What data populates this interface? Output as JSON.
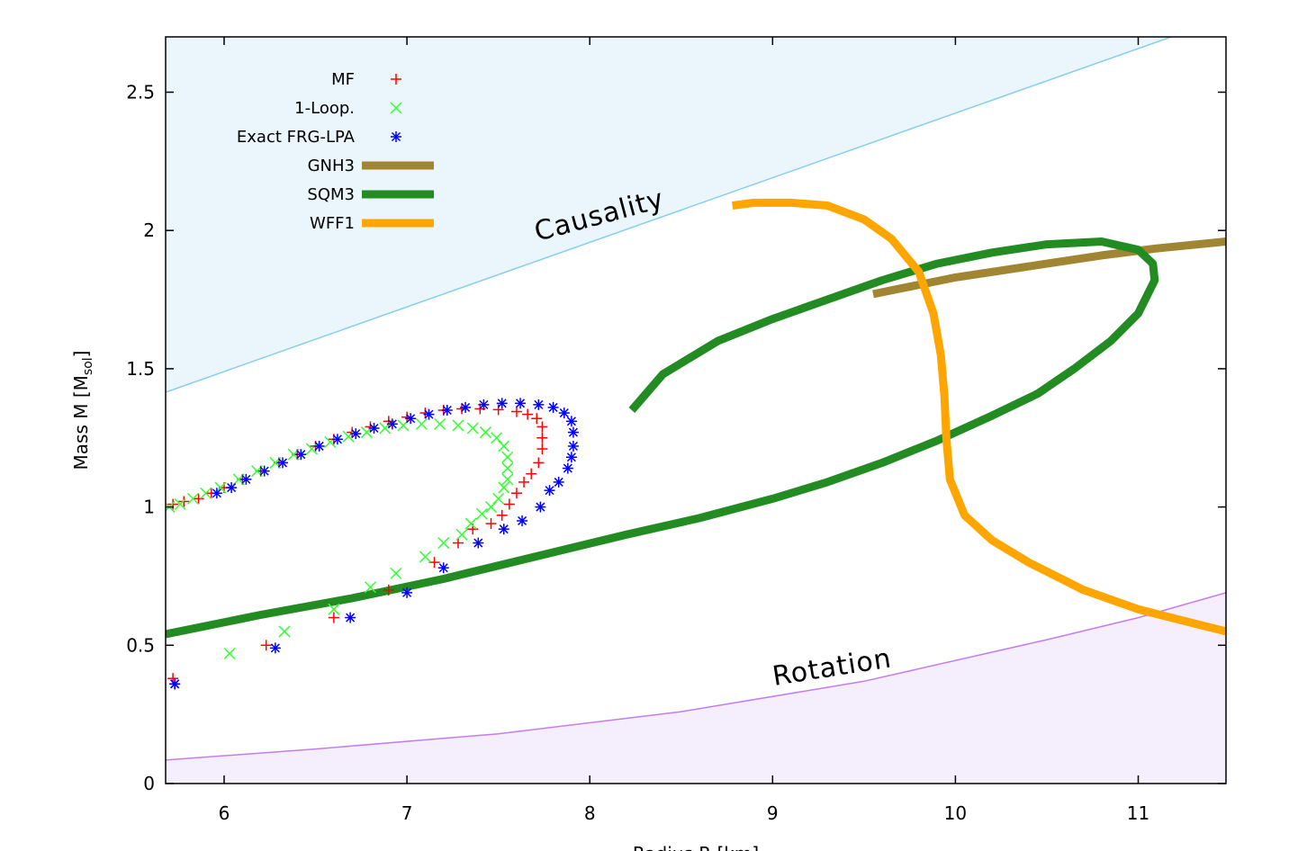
{
  "chart_data": {
    "type": "scatter",
    "title": "",
    "xlabel": "Radius R [km]",
    "ylabel": "Mass M [M_sol]",
    "ylabel_main": "Mass M [M",
    "ylabel_sub": "sol",
    "ylabel_end": "]",
    "xlim": [
      5.68,
      11.48
    ],
    "ylim": [
      0,
      2.7
    ],
    "xticks": [
      6,
      7,
      8,
      9,
      10,
      11
    ],
    "xtick_labels": [
      "6",
      "7",
      "8",
      "9",
      "10",
      "11"
    ],
    "yticks": [
      0,
      0.5,
      1,
      1.5,
      2,
      2.5
    ],
    "ytick_labels": [
      "0",
      "0.5",
      "1",
      "1.5",
      "2",
      "2.5"
    ],
    "grid": false,
    "legend_position": "top-left",
    "annotations": {
      "causality": "Causality",
      "rotation": "Rotation"
    },
    "colors": {
      "mf": "#ff0000",
      "one_loop": "#33ff33",
      "frg": "#0000ff",
      "gnh3": "#a08632",
      "sqm3": "#228b22",
      "wff1": "#ffa500",
      "causality_line": "#87ceeb",
      "causality_fill": "#eaf6fb",
      "rotation_line": "#c37cf5",
      "rotation_fill": "#f5effd"
    },
    "causality_boundary": {
      "x": [
        5.68,
        11.48
      ],
      "y": [
        1.415,
        2.77
      ]
    },
    "rotation_boundary": {
      "x": [
        5.68,
        6.5,
        7.5,
        8.5,
        9.5,
        10.5,
        11,
        11.48
      ],
      "y": [
        0.085,
        0.125,
        0.18,
        0.26,
        0.37,
        0.52,
        0.6,
        0.69
      ]
    },
    "series": [
      {
        "name": "MF",
        "marker": "plus",
        "x": [
          5.72,
          5.78,
          5.86,
          5.93,
          6.0,
          6.1,
          6.2,
          6.3,
          6.4,
          6.5,
          6.6,
          6.7,
          6.8,
          6.9,
          7.0,
          7.1,
          7.2,
          7.3,
          7.4,
          7.5,
          7.6,
          7.66,
          7.71,
          7.74,
          7.74,
          7.74,
          7.72,
          7.68,
          7.64,
          7.6,
          7.56,
          7.52,
          7.46,
          7.36,
          7.28,
          7.15,
          6.9,
          6.6,
          6.23,
          5.72
        ],
        "y": [
          1.01,
          1.02,
          1.03,
          1.05,
          1.07,
          1.1,
          1.13,
          1.16,
          1.19,
          1.22,
          1.245,
          1.27,
          1.29,
          1.31,
          1.325,
          1.34,
          1.35,
          1.355,
          1.355,
          1.352,
          1.345,
          1.335,
          1.32,
          1.29,
          1.25,
          1.21,
          1.16,
          1.12,
          1.09,
          1.05,
          1.01,
          0.97,
          0.94,
          0.92,
          0.87,
          0.8,
          0.7,
          0.6,
          0.5,
          0.38
        ]
      },
      {
        "name": "1-Loop.",
        "marker": "cross",
        "x": [
          5.7,
          5.76,
          5.83,
          5.9,
          5.98,
          6.08,
          6.18,
          6.28,
          6.38,
          6.48,
          6.58,
          6.68,
          6.78,
          6.88,
          6.98,
          7.08,
          7.18,
          7.28,
          7.36,
          7.43,
          7.49,
          7.53,
          7.55,
          7.55,
          7.55,
          7.53,
          7.5,
          7.46,
          7.41,
          7.35,
          7.3,
          7.2,
          7.1,
          6.94,
          6.8,
          6.6,
          6.33,
          6.03
        ],
        "y": [
          1.0,
          1.01,
          1.03,
          1.05,
          1.07,
          1.1,
          1.13,
          1.16,
          1.19,
          1.21,
          1.235,
          1.255,
          1.27,
          1.285,
          1.295,
          1.3,
          1.3,
          1.295,
          1.285,
          1.27,
          1.25,
          1.22,
          1.18,
          1.14,
          1.1,
          1.07,
          1.03,
          1.0,
          0.975,
          0.94,
          0.9,
          0.87,
          0.82,
          0.76,
          0.71,
          0.63,
          0.55,
          0.47
        ]
      },
      {
        "name": "Exact FRG-LPA",
        "marker": "star",
        "x": [
          5.73,
          5.96,
          6.04,
          6.12,
          6.22,
          6.32,
          6.42,
          6.52,
          6.62,
          6.72,
          6.82,
          6.92,
          7.02,
          7.12,
          7.22,
          7.32,
          7.42,
          7.52,
          7.62,
          7.72,
          7.8,
          7.86,
          7.9,
          7.91,
          7.91,
          7.9,
          7.88,
          7.83,
          7.78,
          7.73,
          7.63,
          7.53,
          7.39,
          7.2,
          7.0,
          6.69,
          6.28,
          5.73
        ],
        "y": [
          0.36,
          1.05,
          1.07,
          1.1,
          1.13,
          1.16,
          1.19,
          1.22,
          1.245,
          1.265,
          1.285,
          1.3,
          1.32,
          1.335,
          1.35,
          1.36,
          1.37,
          1.375,
          1.375,
          1.37,
          1.36,
          1.34,
          1.31,
          1.27,
          1.22,
          1.18,
          1.14,
          1.09,
          1.06,
          1.0,
          0.95,
          0.92,
          0.87,
          0.78,
          0.69,
          0.6,
          0.49,
          0.36
        ]
      },
      {
        "name": "GNH3",
        "marker": "line",
        "x": [
          9.55,
          9.7,
          9.85,
          10.0,
          10.2,
          10.5,
          10.8,
          11.1,
          11.48
        ],
        "y": [
          1.77,
          1.79,
          1.81,
          1.83,
          1.85,
          1.88,
          1.91,
          1.935,
          1.96
        ]
      },
      {
        "name": "SQM3",
        "marker": "line",
        "x": [
          8.23,
          8.4,
          8.7,
          9.0,
          9.3,
          9.6,
          9.9,
          10.2,
          10.5,
          10.8,
          11.0,
          11.08,
          11.09,
          11.0,
          10.85,
          10.65,
          10.45,
          10.2,
          9.9,
          9.6,
          9.3,
          9.0,
          8.6,
          8.2,
          7.7,
          7.2,
          6.7,
          6.2,
          5.68
        ],
        "y": [
          1.35,
          1.48,
          1.6,
          1.68,
          1.75,
          1.82,
          1.88,
          1.92,
          1.95,
          1.96,
          1.93,
          1.88,
          1.82,
          1.7,
          1.6,
          1.5,
          1.41,
          1.33,
          1.24,
          1.16,
          1.09,
          1.03,
          0.96,
          0.9,
          0.82,
          0.74,
          0.67,
          0.61,
          0.54
        ]
      },
      {
        "name": "WFF1",
        "marker": "line",
        "x": [
          8.78,
          8.9,
          9.1,
          9.3,
          9.5,
          9.65,
          9.8,
          9.88,
          9.92,
          9.94,
          9.95,
          9.97,
          10.05,
          10.2,
          10.4,
          10.7,
          11.0,
          11.3,
          11.48
        ],
        "y": [
          2.09,
          2.1,
          2.1,
          2.09,
          2.04,
          1.97,
          1.85,
          1.7,
          1.55,
          1.4,
          1.25,
          1.1,
          0.97,
          0.88,
          0.8,
          0.7,
          0.63,
          0.58,
          0.55
        ]
      }
    ]
  }
}
